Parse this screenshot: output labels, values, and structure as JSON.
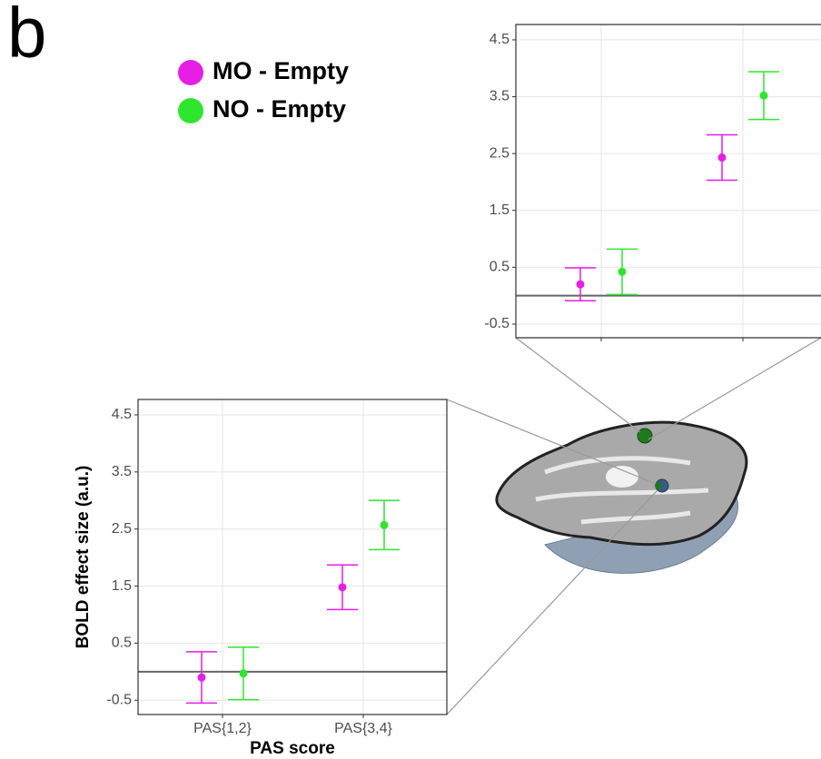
{
  "panel_label": "b",
  "chart_data": [
    {
      "type": "errorbar",
      "x_label": "PAS score",
      "y_label": "BOLD effect size (a.u.)",
      "categories": [
        "PAS{1,2}",
        "PAS{3,4}"
      ],
      "series": [
        {
          "name": "MO - Empty",
          "color": "#e61ee6",
          "values": [
            -0.1,
            1.48
          ],
          "errors": [
            0.45,
            0.39
          ]
        },
        {
          "name": "NO - Empty",
          "color": "#2ee62e",
          "values": [
            -0.03,
            2.57
          ],
          "errors": [
            0.46,
            0.43
          ]
        }
      ],
      "ylim": [
        -0.75,
        4.77
      ],
      "yticks": [
        4.5,
        3.5,
        2.5,
        1.5,
        0.5,
        -0.5
      ],
      "hline": 0,
      "grid": true
    },
    {
      "type": "errorbar",
      "categories": [
        null,
        null
      ],
      "series": [
        {
          "color": "#e61ee6",
          "values": [
            0.2,
            2.43
          ],
          "errors": [
            0.29,
            0.4
          ]
        },
        {
          "color": "#2ee62e",
          "values": [
            0.42,
            3.52
          ],
          "errors": [
            0.4,
            0.42
          ]
        }
      ],
      "ylim": [
        -0.74,
        4.77
      ],
      "yticks": [
        4.5,
        3.5,
        2.5,
        1.5,
        0.5,
        -0.5
      ],
      "hline": 0,
      "grid": true
    }
  ]
}
